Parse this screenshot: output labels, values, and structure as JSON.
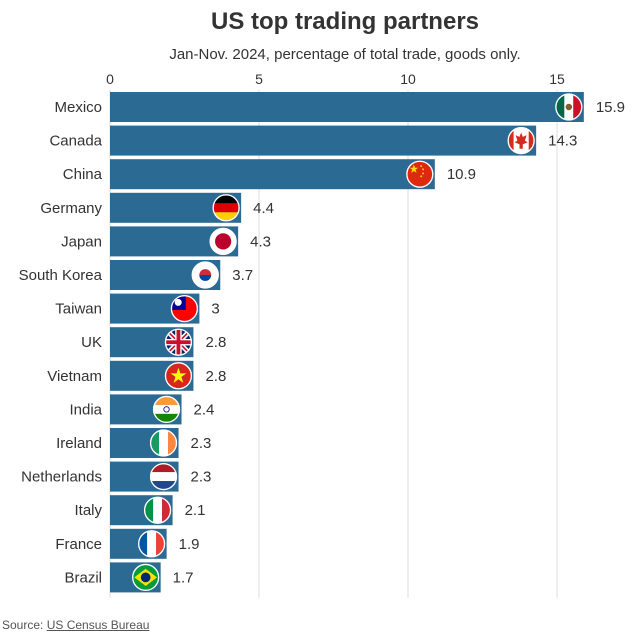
{
  "chart_data": {
    "type": "bar",
    "orientation": "horizontal",
    "title": "US top trading partners",
    "subtitle": "Jan-Nov. 2024, percentage of total trade, goods only.",
    "xlabel": "",
    "ylabel": "",
    "xlim": [
      0,
      16
    ],
    "xticks": [
      0,
      5,
      10,
      15
    ],
    "grid": true,
    "categories": [
      "Mexico",
      "Canada",
      "China",
      "Germany",
      "Japan",
      "South Korea",
      "Taiwan",
      "UK",
      "Vietnam",
      "India",
      "Ireland",
      "Netherlands",
      "Italy",
      "France",
      "Brazil"
    ],
    "values": [
      15.9,
      14.3,
      10.9,
      4.4,
      4.3,
      3.7,
      3,
      2.8,
      2.8,
      2.4,
      2.3,
      2.3,
      2.1,
      1.9,
      1.7
    ],
    "value_labels": [
      "15.9",
      "14.3",
      "10.9",
      "4.4",
      "4.3",
      "3.7",
      "3",
      "2.8",
      "2.8",
      "2.4",
      "2.3",
      "2.3",
      "2.1",
      "1.9",
      "1.7"
    ],
    "flag_icons": [
      "mexico-flag-icon",
      "canada-flag-icon",
      "china-flag-icon",
      "germany-flag-icon",
      "japan-flag-icon",
      "south-korea-flag-icon",
      "taiwan-flag-icon",
      "uk-flag-icon",
      "vietnam-flag-icon",
      "india-flag-icon",
      "ireland-flag-icon",
      "netherlands-flag-icon",
      "italy-flag-icon",
      "france-flag-icon",
      "brazil-flag-icon"
    ],
    "bar_color": "#2b6a93",
    "grid_color": "#dddddd"
  },
  "source": {
    "prefix": "Source: ",
    "name": "US Census Bureau"
  }
}
